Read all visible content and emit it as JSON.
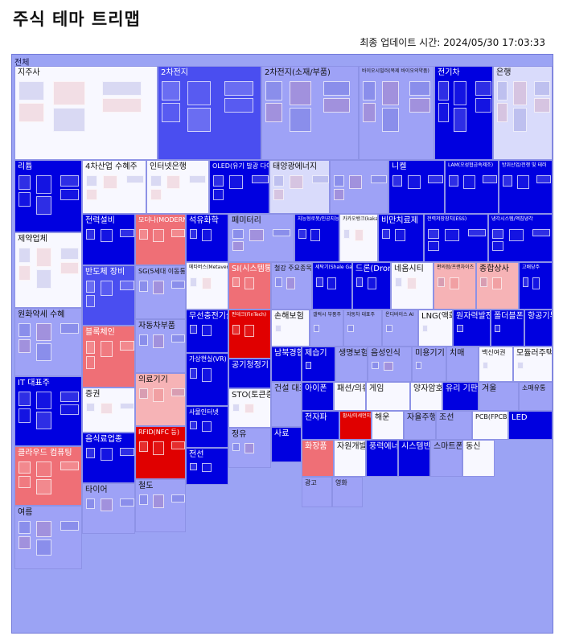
{
  "page": {
    "title": "주식 테마 트리맵",
    "updated_label": "최종 업데이트 시간: 2024/05/30 17:03:33",
    "root_label": "전체"
  },
  "colors": {
    "strong_down": "#0000e0",
    "down": "#4a4ef0",
    "weak_down": "#9ea2f6",
    "flat_down": "#d9dbfb",
    "flat": "#f8f8ff",
    "weak_up": "#f6b3b6",
    "up": "#ef6f76",
    "strong_up": "#e00000"
  },
  "chart_data": {
    "type": "treemap",
    "title": "주식 테마 트리맵",
    "root": "전체",
    "themes": [
      {
        "name": "지주사",
        "color": "flat"
      },
      {
        "name": "2차전지",
        "color": "down"
      },
      {
        "name": "2차전지(소재/부품)",
        "color": "weak_down"
      },
      {
        "name": "바이오시밀러(복제 바이오의약품)",
        "color": "weak_down"
      },
      {
        "name": "전기차",
        "color": "strong_down"
      },
      {
        "name": "은행",
        "color": "flat_down"
      },
      {
        "name": "리튬",
        "color": "strong_down"
      },
      {
        "name": "4차산업 수혜주",
        "color": "flat"
      },
      {
        "name": "인터넷은행",
        "color": "flat"
      },
      {
        "name": "OLED(유기 발광 다이오드)",
        "color": "strong_down"
      },
      {
        "name": "태양광에너지",
        "color": "flat_down"
      },
      {
        "name": "",
        "color": "weak_down"
      },
      {
        "name": "니켈",
        "color": "strong_down"
      },
      {
        "name": "LAM(오성협금속제조)",
        "color": "strong_down"
      },
      {
        "name": "방위산업/전쟁 및 테러",
        "color": "strong_down"
      },
      {
        "name": "제약업체",
        "color": "flat"
      },
      {
        "name": "전력설비",
        "color": "strong_down"
      },
      {
        "name": "모더나(MODERNA)",
        "color": "up"
      },
      {
        "name": "석유화학",
        "color": "strong_down"
      },
      {
        "name": "페미터리",
        "color": "weak_down"
      },
      {
        "name": "지능형로봇/인공지능(AI)",
        "color": "strong_down"
      },
      {
        "name": "카카오뱅크(kakao BANK)",
        "color": "flat"
      },
      {
        "name": "비만치료제",
        "color": "strong_down"
      },
      {
        "name": "전력저장장치(ESS)",
        "color": "strong_down"
      },
      {
        "name": "냉각시스템/액침냉각",
        "color": "strong_down"
      },
      {
        "name": "반도체 장비",
        "color": "down"
      },
      {
        "name": "SG(5세대 이동통신)",
        "color": "weak_down"
      },
      {
        "name": "메타버스(Metaverse)",
        "color": "flat"
      },
      {
        "name": "SI(시스템통합)",
        "color": "up"
      },
      {
        "name": "철강 주요종목",
        "color": "weak_down"
      },
      {
        "name": "세탁기(Shale Gas)",
        "color": "strong_down"
      },
      {
        "name": "드론(Drone)",
        "color": "strong_down"
      },
      {
        "name": "네옴시티",
        "color": "flat"
      },
      {
        "name": "편의점/프랜차이즈",
        "color": "weak_up"
      },
      {
        "name": "종합상사",
        "color": "weak_up"
      },
      {
        "name": "고배당주",
        "color": "strong_down"
      },
      {
        "name": "원화약세 수혜",
        "color": "weak_down"
      },
      {
        "name": "블록체인",
        "color": "up"
      },
      {
        "name": "자동차부품",
        "color": "weak_down"
      },
      {
        "name": "무선충전기술",
        "color": "strong_down"
      },
      {
        "name": "핀테크(FinTech)",
        "color": "strong_up"
      },
      {
        "name": "손해보험",
        "color": "flat"
      },
      {
        "name": "갤럭시 부품주",
        "color": "weak_down"
      },
      {
        "name": "자동차 대표주",
        "color": "weak_down"
      },
      {
        "name": "온디바이스 AI",
        "color": "weak_down"
      },
      {
        "name": "LNG(액화천연가스)",
        "color": "flat"
      },
      {
        "name": "원자력발전",
        "color": "strong_down"
      },
      {
        "name": "폴더블폰",
        "color": "strong_down"
      },
      {
        "name": "항공기부품",
        "color": "strong_down"
      },
      {
        "name": "IT 대표주",
        "color": "strong_down"
      },
      {
        "name": "증권",
        "color": "flat"
      },
      {
        "name": "의료기기",
        "color": "weak_up"
      },
      {
        "name": "가상현실(VR)",
        "color": "strong_down"
      },
      {
        "name": "공기청정기",
        "color": "strong_down"
      },
      {
        "name": "남북경협",
        "color": "strong_down"
      },
      {
        "name": "제습기",
        "color": "strong_down"
      },
      {
        "name": "생명보험",
        "color": "weak_down"
      },
      {
        "name": "음성인식",
        "color": "weak_down"
      },
      {
        "name": "미용기기",
        "color": "weak_down"
      },
      {
        "name": "치매",
        "color": "weak_down"
      },
      {
        "name": "백신여권",
        "color": "flat"
      },
      {
        "name": "모듈러주택",
        "color": "flat"
      },
      {
        "name": "아이폰",
        "color": "strong_down"
      },
      {
        "name": "패션/의류",
        "color": "flat"
      },
      {
        "name": "게임",
        "color": "flat"
      },
      {
        "name": "양자암호",
        "color": "flat"
      },
      {
        "name": "유리 기판",
        "color": "strong_down"
      },
      {
        "name": "겨울",
        "color": "weak_down"
      },
      {
        "name": "소매유통",
        "color": "weak_down"
      },
      {
        "name": "전자파",
        "color": "strong_down"
      },
      {
        "name": "황사/미세먼지",
        "color": "strong_up"
      },
      {
        "name": "해운",
        "color": "flat"
      },
      {
        "name": "자율주행차",
        "color": "weak_down"
      },
      {
        "name": "조선",
        "color": "weak_down"
      },
      {
        "name": "PCB(FPCB 등)",
        "color": "flat"
      },
      {
        "name": "LED",
        "color": "strong_down"
      },
      {
        "name": "클라우드 컴퓨팅",
        "color": "up"
      },
      {
        "name": "음식료업종",
        "color": "strong_down"
      },
      {
        "name": "RFID(NFC 등)",
        "color": "strong_up"
      },
      {
        "name": "사물인터넷",
        "color": "strong_down"
      },
      {
        "name": "STO(토큰증권 발행)",
        "color": "flat"
      },
      {
        "name": "건설 대표주",
        "color": "weak_down"
      },
      {
        "name": "화장품",
        "color": "up"
      },
      {
        "name": "자원개발",
        "color": "flat"
      },
      {
        "name": "풍력에너지",
        "color": "strong_down"
      },
      {
        "name": "시스템반도체",
        "color": "strong_down"
      },
      {
        "name": "스마트폰",
        "color": "weak_down"
      },
      {
        "name": "동신",
        "color": "flat"
      },
      {
        "name": "여름",
        "color": "weak_down"
      },
      {
        "name": "타이어",
        "color": "weak_down"
      },
      {
        "name": "철도",
        "color": "weak_down"
      },
      {
        "name": "전선",
        "color": "strong_down"
      },
      {
        "name": "정유",
        "color": "weak_down"
      },
      {
        "name": "사료",
        "color": "strong_down"
      },
      {
        "name": "광고",
        "color": "weak_down"
      },
      {
        "name": "영화",
        "color": "weak_down"
      }
    ]
  },
  "tiles": [
    {
      "name": "지주사",
      "color": "flat",
      "size": "lg"
    },
    {
      "name": "2차전지",
      "color": "down",
      "size": "lg"
    },
    {
      "name": "2차전지(소재/부품)",
      "color": "weak_down",
      "size": "lg"
    },
    {
      "name": "바이오시밀러(복제 바이오의약품)",
      "color": "weak_down",
      "size": "sm"
    },
    {
      "name": "전기차",
      "color": "strong_down",
      "size": "lg"
    },
    {
      "name": "은행",
      "color": "flat_down",
      "size": "lg"
    },
    {
      "name": "리튬",
      "color": "strong_down",
      "size": "lg"
    },
    {
      "name": "4차산업 수혜주",
      "color": "flat",
      "size": "lg"
    },
    {
      "name": "인터넷은행",
      "color": "flat",
      "size": "lg"
    },
    {
      "name": "OLED(유기 발광 다이오드)",
      "color": "strong_down",
      "size": "md"
    },
    {
      "name": "태양광에너지",
      "color": "flat_down",
      "size": "lg"
    },
    {
      "name": "",
      "color": "weak_down",
      "size": "sm"
    },
    {
      "name": "니켈",
      "color": "strong_down",
      "size": "lg"
    },
    {
      "name": "LAM(오성협금속제조)",
      "color": "strong_down",
      "size": "sm"
    },
    {
      "name": "방위산업/전쟁 및 테러",
      "color": "strong_down",
      "size": "sm"
    },
    {
      "name": "제약업체",
      "color": "flat",
      "size": "lg"
    },
    {
      "name": "전력설비",
      "color": "strong_down",
      "size": "lg"
    },
    {
      "name": "모더나(MODERNA)",
      "color": "up",
      "size": "md"
    },
    {
      "name": "석유화학",
      "color": "strong_down",
      "size": "lg"
    },
    {
      "name": "페미터리",
      "color": "weak_down",
      "size": "lg"
    },
    {
      "name": "지능형로봇/인공지능(AI)",
      "color": "strong_down",
      "size": "sm"
    },
    {
      "name": "카카오뱅크(kakao BANK)",
      "color": "flat",
      "size": "sm"
    },
    {
      "name": "비만치료제",
      "color": "strong_down",
      "size": "lg"
    },
    {
      "name": "전력저장장치(ESS)",
      "color": "strong_down",
      "size": "sm"
    },
    {
      "name": "냉각시스템/액침냉각",
      "color": "strong_down",
      "size": "sm"
    },
    {
      "name": "반도체 장비",
      "color": "down",
      "size": "lg"
    },
    {
      "name": "SG(5세대 이동통신)",
      "color": "weak_down",
      "size": "md"
    },
    {
      "name": "메타버스(Metaverse)",
      "color": "flat",
      "size": "sm"
    },
    {
      "name": "SI(시스템통합)",
      "color": "up",
      "size": "lg"
    },
    {
      "name": "철강 주요종목",
      "color": "weak_down",
      "size": "md"
    },
    {
      "name": "세탁기(Shale Gas)",
      "color": "strong_down",
      "size": "sm"
    },
    {
      "name": "드론(Drone)",
      "color": "strong_down",
      "size": "lg"
    },
    {
      "name": "네옴시티",
      "color": "flat",
      "size": "lg"
    },
    {
      "name": "편의점/프랜차이즈",
      "color": "weak_up",
      "size": "sm"
    },
    {
      "name": "종합상사",
      "color": "weak_up",
      "size": "lg"
    },
    {
      "name": "고배당주",
      "color": "strong_down",
      "size": "sm"
    },
    {
      "name": "원화약세 수혜",
      "color": "weak_down",
      "size": "lg"
    },
    {
      "name": "블록체인",
      "color": "up",
      "size": "lg"
    },
    {
      "name": "자동차부품",
      "color": "weak_down",
      "size": "lg"
    },
    {
      "name": "무선충전기술",
      "color": "strong_down",
      "size": "lg"
    },
    {
      "name": "핀테크(FinTech)",
      "color": "strong_up",
      "size": "sm"
    },
    {
      "name": "손해보험",
      "color": "flat",
      "size": "lg"
    },
    {
      "name": "갤럭시 부품주",
      "color": "weak_down",
      "size": "sm"
    },
    {
      "name": "자동차 대표주",
      "color": "weak_down",
      "size": "sm"
    },
    {
      "name": "온디바이스 AI",
      "color": "weak_down",
      "size": "sm"
    },
    {
      "name": "LNG(액화천연가스)",
      "color": "flat",
      "size": "lg"
    },
    {
      "name": "원자력발전",
      "color": "strong_down",
      "size": "lg"
    },
    {
      "name": "폴더블폰",
      "color": "strong_down",
      "size": "lg"
    },
    {
      "name": "항공기부품",
      "color": "strong_down",
      "size": "lg"
    },
    {
      "name": "IT 대표주",
      "color": "strong_down",
      "size": "lg"
    },
    {
      "name": "증권",
      "color": "flat",
      "size": "lg"
    },
    {
      "name": "의료기기",
      "color": "weak_up",
      "size": "lg"
    },
    {
      "name": "가상현실(VR)",
      "color": "strong_down",
      "size": "md"
    },
    {
      "name": "공기청정기",
      "color": "strong_down",
      "size": "lg"
    },
    {
      "name": "남북경협",
      "color": "strong_down",
      "size": "lg"
    },
    {
      "name": "제습기",
      "color": "strong_down",
      "size": "lg"
    },
    {
      "name": "생명보험",
      "color": "weak_down",
      "size": "lg"
    },
    {
      "name": "음성인식",
      "color": "weak_down",
      "size": "lg"
    },
    {
      "name": "미용기기",
      "color": "weak_down",
      "size": "lg"
    },
    {
      "name": "치매",
      "color": "weak_down",
      "size": "lg"
    },
    {
      "name": "백신여권",
      "color": "flat",
      "size": "md"
    },
    {
      "name": "모듈러주택",
      "color": "flat",
      "size": "lg"
    },
    {
      "name": "아이폰",
      "color": "strong_down",
      "size": "lg"
    },
    {
      "name": "패션/의류",
      "color": "flat",
      "size": "lg"
    },
    {
      "name": "게임",
      "color": "flat",
      "size": "lg"
    },
    {
      "name": "양자암호",
      "color": "flat",
      "size": "lg"
    },
    {
      "name": "유리 기판",
      "color": "strong_down",
      "size": "lg"
    },
    {
      "name": "겨울",
      "color": "weak_down",
      "size": "lg"
    },
    {
      "name": "소매유통",
      "color": "weak_down",
      "size": "md"
    },
    {
      "name": "전자파",
      "color": "strong_down",
      "size": "lg"
    },
    {
      "name": "황사/미세먼지",
      "color": "strong_up",
      "size": "sm"
    },
    {
      "name": "해운",
      "color": "flat",
      "size": "lg"
    },
    {
      "name": "자율주행차",
      "color": "weak_down",
      "size": "lg"
    },
    {
      "name": "조선",
      "color": "weak_down",
      "size": "lg"
    },
    {
      "name": "PCB(FPCB 등)",
      "color": "flat",
      "size": "md"
    },
    {
      "name": "LED",
      "color": "strong_down",
      "size": "lg"
    },
    {
      "name": "클라우드 컴퓨팅",
      "color": "up",
      "size": "lg"
    },
    {
      "name": "음식료업종",
      "color": "strong_down",
      "size": "lg"
    },
    {
      "name": "RFID(NFC 등)",
      "color": "strong_up",
      "size": "md"
    },
    {
      "name": "사물인터넷",
      "color": "strong_down",
      "size": "md"
    },
    {
      "name": "STO(토큰증권 발행)",
      "color": "flat",
      "size": "lg"
    },
    {
      "name": "건설 대표주",
      "color": "weak_down",
      "size": "lg"
    },
    {
      "name": "화장품",
      "color": "up",
      "size": "lg"
    },
    {
      "name": "자원개발",
      "color": "flat",
      "size": "lg"
    },
    {
      "name": "풍력에너지",
      "color": "strong_down",
      "size": "lg"
    },
    {
      "name": "시스템반도체",
      "color": "strong_down",
      "size": "lg"
    },
    {
      "name": "스마트폰",
      "color": "weak_down",
      "size": "lg"
    },
    {
      "name": "동신",
      "color": "flat",
      "size": "lg"
    },
    {
      "name": "여름",
      "color": "weak_down",
      "size": "lg"
    },
    {
      "name": "타이어",
      "color": "weak_down",
      "size": "lg"
    },
    {
      "name": "철도",
      "color": "weak_down",
      "size": "lg"
    },
    {
      "name": "전선",
      "color": "strong_down",
      "size": "lg"
    },
    {
      "name": "정유",
      "color": "weak_down",
      "size": "lg"
    },
    {
      "name": "사료",
      "color": "strong_down",
      "size": "lg"
    },
    {
      "name": "광고",
      "color": "weak_down",
      "size": "md"
    },
    {
      "name": "영화",
      "color": "weak_down",
      "size": "md"
    }
  ]
}
